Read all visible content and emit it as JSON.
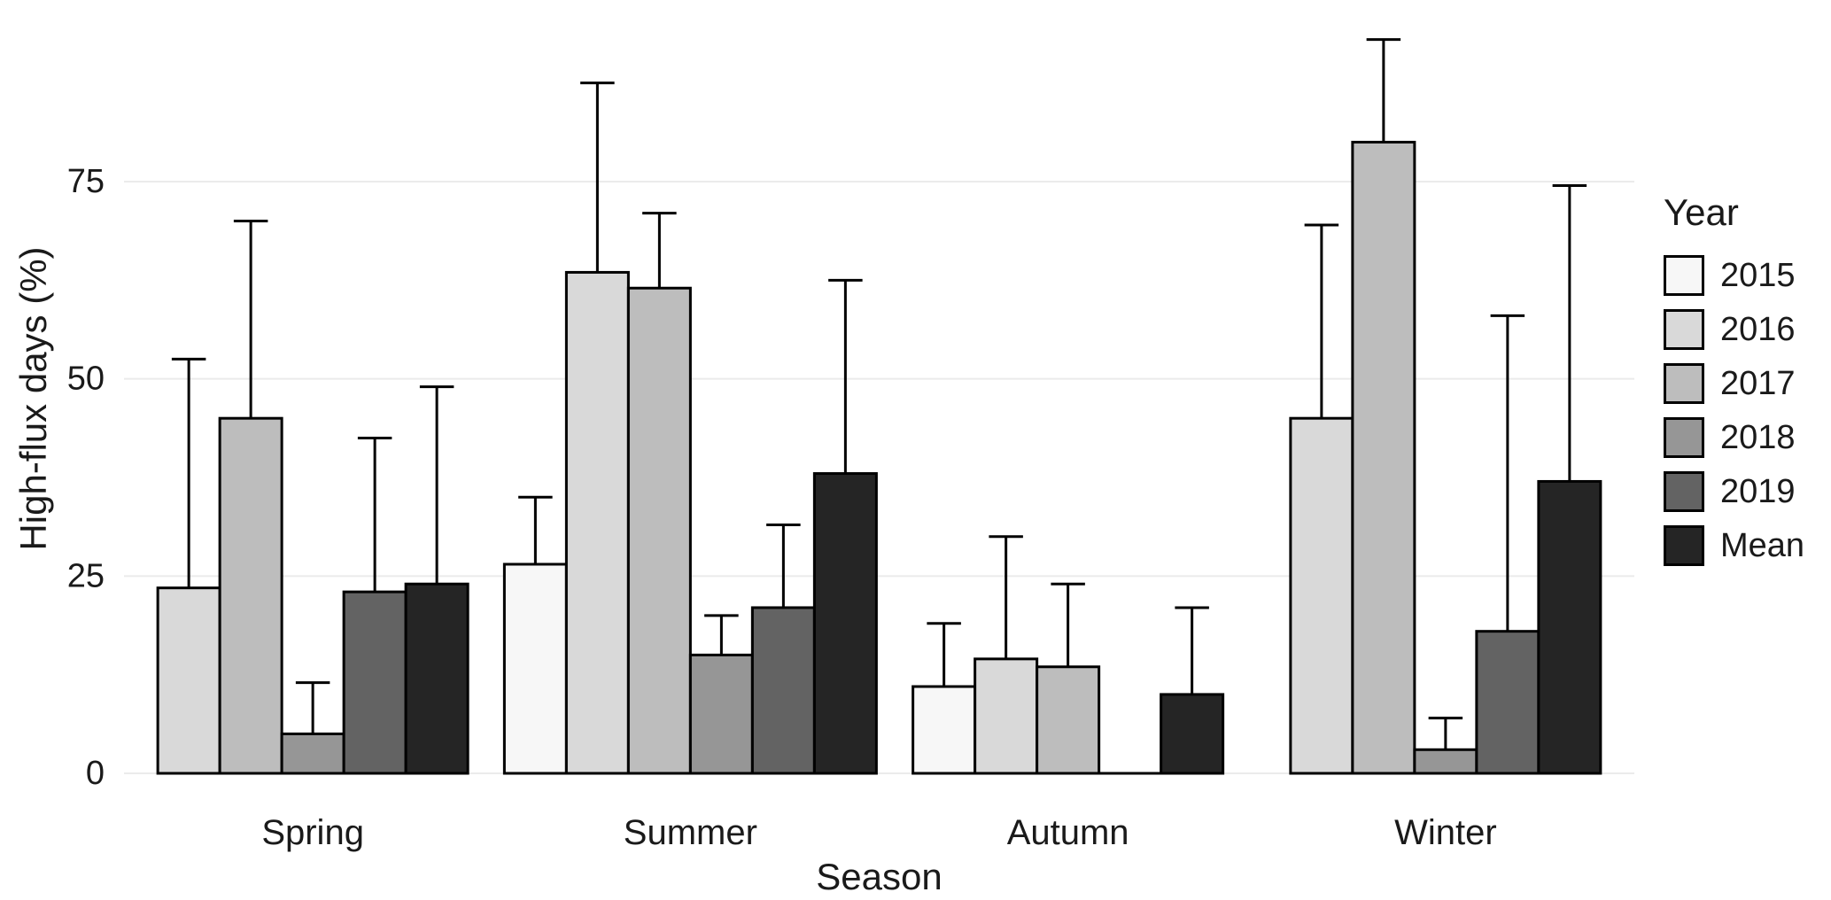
{
  "chart_data": {
    "type": "bar",
    "title": "",
    "xlabel": "Season",
    "ylabel": "High-flux days (%)",
    "legend_title": "Year",
    "legend_position": "right",
    "categories": [
      "Spring",
      "Summer",
      "Autumn",
      "Winter"
    ],
    "y_ticks": [
      0,
      25,
      50,
      75
    ],
    "ylim": [
      0,
      95
    ],
    "grid": true,
    "error_bars": "upper",
    "series": [
      {
        "name": "2015",
        "color": "#F7F7F7",
        "values": [
          null,
          26.5,
          11,
          null
        ],
        "errors_high": [
          null,
          35,
          19,
          null
        ]
      },
      {
        "name": "2016",
        "color": "#D9D9D9",
        "values": [
          23.5,
          63.5,
          14.5,
          45
        ],
        "errors_high": [
          52.5,
          87.5,
          30,
          69.5
        ]
      },
      {
        "name": "2017",
        "color": "#BDBDBD",
        "values": [
          45,
          61.5,
          13.5,
          80
        ],
        "errors_high": [
          70,
          71,
          24,
          93
        ]
      },
      {
        "name": "2018",
        "color": "#969696",
        "values": [
          5,
          15,
          0,
          3
        ],
        "errors_high": [
          11.5,
          20,
          null,
          7
        ]
      },
      {
        "name": "2019",
        "color": "#636363",
        "values": [
          23,
          21,
          null,
          18
        ],
        "errors_high": [
          42.5,
          31.5,
          null,
          58
        ]
      },
      {
        "name": "Mean",
        "color": "#252525",
        "values": [
          24,
          38,
          10,
          37
        ],
        "errors_high": [
          49,
          62.5,
          21,
          74.5
        ]
      }
    ],
    "colors": {
      "background": "#FFFFFF",
      "grid": "#EBEBEB",
      "bar_outline": "#000000",
      "error_bar": "#000000",
      "text": "#1A1A1A"
    }
  }
}
